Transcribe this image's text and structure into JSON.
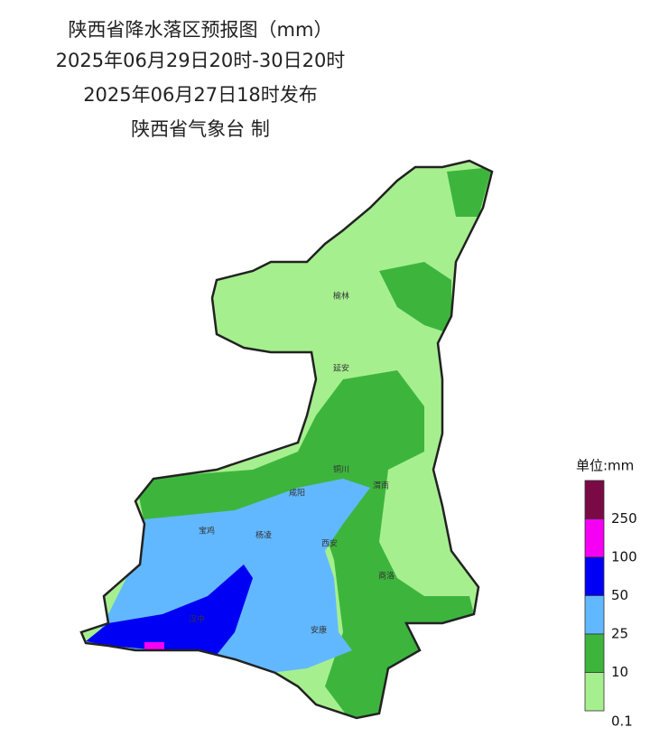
{
  "header": {
    "lines": [
      "陕西省降水落区预报图（mm）",
      "2025年06月29日20时-30日20时",
      "2025年06月27日18时发布",
      "陕西省气象台 制"
    ]
  },
  "cities": [
    "榆林",
    "延安",
    "铜川",
    "渭南",
    "咸阳",
    "宝鸡",
    "杨凌",
    "西安",
    "商洛",
    "汉中",
    "安康"
  ],
  "legend": {
    "unit": "单位:mm",
    "colors": [
      "#7a0a45",
      "#f500f5",
      "#0000f5",
      "#62b8ff",
      "#3db53d",
      "#a6ef8f"
    ],
    "labels": [
      "250",
      "100",
      "50",
      "25",
      "10",
      "0.1"
    ]
  }
}
